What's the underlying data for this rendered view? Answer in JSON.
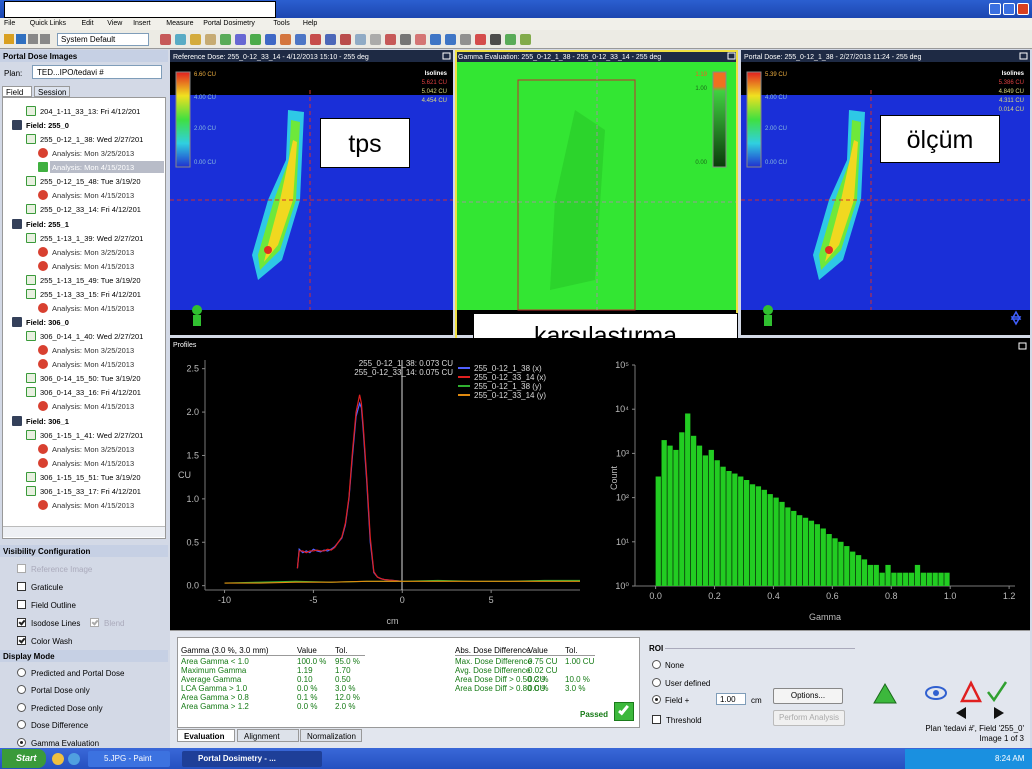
{
  "menu": [
    "File",
    "Quick Links",
    "Edit",
    "View",
    "Insert",
    "Measure",
    "Portal Dosimetry",
    "Tools",
    "Help"
  ],
  "toolbar": {
    "scheme": "System Default"
  },
  "left_panel": {
    "title": "Portal Dose Images",
    "plan_label": "Plan:",
    "plan": "TED...IPO/tedavi #",
    "tabs": [
      "Field",
      "Session"
    ],
    "selected": 4,
    "tree": [
      "204_1-11_33_13: Fri 4/12/201",
      "Field: 255_0",
      "255_0-12_1_38: Wed 2/27/201",
      "Analysis: Mon 3/25/2013",
      "Analysis: Mon 4/15/2013",
      "255_0-12_15_48: Tue 3/19/20",
      "Analysis: Mon 4/15/2013",
      "255_0-12_33_14: Fri 4/12/201",
      "Field: 255_1",
      "255_1-13_1_39: Wed 2/27/201",
      "Analysis: Mon 3/25/2013",
      "Analysis: Mon 4/15/2013",
      "255_1-13_15_49: Tue 3/19/20",
      "255_1-13_33_15: Fri 4/12/201",
      "Analysis: Mon 4/15/2013",
      "Field: 306_0",
      "306_0-14_1_40: Wed 2/27/201",
      "Analysis: Mon 3/25/2013",
      "Analysis: Mon 4/15/2013",
      "306_0-14_15_50: Tue 3/19/20",
      "306_0-14_33_16: Fri 4/12/201",
      "Analysis: Mon 4/15/2013",
      "Field: 306_1",
      "306_1-15_1_41: Wed 2/27/201",
      "Analysis: Mon 3/25/2013",
      "Analysis: Mon 4/15/2013",
      "306_1-15_15_51: Tue 3/19/20",
      "306_1-15_33_17: Fri 4/12/201",
      "Analysis: Mon 4/15/2013"
    ]
  },
  "visibility": {
    "title": "Visibility Configuration",
    "items": [
      {
        "label": "Reference Image",
        "checked": false,
        "enabled": false
      },
      {
        "label": "Graticule",
        "checked": false,
        "enabled": true
      },
      {
        "label": "Field Outline",
        "checked": false,
        "enabled": true
      },
      {
        "label": "Isodose Lines",
        "checked": true,
        "enabled": true
      },
      {
        "label": "Blend",
        "checked": true,
        "enabled": false
      },
      {
        "label": "Color Wash",
        "checked": true,
        "enabled": true
      }
    ]
  },
  "display_mode": {
    "title": "Display Mode",
    "options": [
      "Predicted and Portal Dose",
      "Portal Dose only",
      "Predicted Dose only",
      "Dose Difference",
      "Gamma Evaluation"
    ],
    "selected": 4
  },
  "panels": [
    {
      "title": "Reference Dose: 255_0-12_33_14 - 4/12/2013 15:10 - 255 deg",
      "colorbar": [
        "6.60 CU",
        "4.00 CU",
        "2.00 CU",
        "0.00 CU"
      ],
      "isolines": [
        "Isolines",
        "5.621 CU",
        "5.042 CU",
        "4.454 CU"
      ]
    },
    {
      "title": "Gamma Evaluation: 255_0-12_1_38 - 255_0-12_33_14 - 255 deg",
      "colorbar": [
        "1.19",
        "1.00",
        "0.00"
      ]
    },
    {
      "title": "Portal Dose: 255_0-12_1_38 - 2/27/2013 11:24 - 255 deg",
      "colorbar": [
        "5.39 CU",
        "4.00 CU",
        "2.00 CU",
        "0.00 CU"
      ],
      "isolines": [
        "Isolines",
        "5.386 CU",
        "4.849 CU",
        "4.311 CU",
        "0.014 CU"
      ]
    }
  ],
  "annotations": [
    "tps",
    "karşılaştırma",
    "ölçüm"
  ],
  "chart_data": [
    {
      "type": "line",
      "title": "Profiles",
      "x_label": "cm",
      "y_label": "CU",
      "xlim": [
        -11.1,
        10
      ],
      "ylim": [
        -0.05,
        2.6
      ],
      "xticks": [
        -10,
        -5,
        0,
        5
      ],
      "yticks": [
        {
          "value": 0,
          "label": "0.0"
        },
        0.5,
        {
          "value": 1,
          "label": "1.0"
        },
        1.5,
        {
          "value": 2,
          "label": "2.0"
        },
        2.5
      ],
      "annotations": [
        "255_0-12_1_38: 0.073 CU",
        "255_0-12_33_14: 0.075 CU"
      ],
      "series": [
        {
          "name": "255_0-12_1_38 (x)",
          "color": "#5060ff",
          "x": [
            -5.9,
            -5.8,
            -5.6,
            -5.4,
            -5.2,
            -5.0,
            -4.8,
            -4.6,
            -4.4,
            -4.2,
            -4.0,
            -3.8,
            -3.6,
            -3.4,
            -3.2,
            -3.0,
            -2.8,
            -2.6,
            -2.4,
            -2.3,
            -2.2,
            -2.0,
            -1.8,
            -1.6,
            -1.4,
            -1.2,
            -1.0,
            -0.5,
            0.0
          ],
          "values": [
            0.2,
            0.42,
            0.38,
            0.4,
            0.38,
            0.42,
            0.4,
            0.39,
            0.41,
            0.4,
            0.42,
            0.45,
            0.5,
            0.55,
            0.7,
            1.0,
            1.5,
            1.95,
            2.1,
            2.05,
            1.8,
            1.2,
            0.5,
            0.15,
            0.1,
            0.08,
            0.07,
            0.06,
            0.05
          ]
        },
        {
          "name": "255_0-12_33_14 (x)",
          "color": "#e02020",
          "x": [
            -5.9,
            -5.8,
            -5.6,
            -5.4,
            -5.2,
            -5.0,
            -4.8,
            -4.6,
            -4.4,
            -4.2,
            -4.0,
            -3.8,
            -3.6,
            -3.4,
            -3.2,
            -3.0,
            -2.8,
            -2.6,
            -2.4,
            -2.3,
            -2.2,
            -2.0,
            -1.8,
            -1.6,
            -1.4,
            -1.2,
            -1.0,
            -0.5,
            0.0
          ],
          "values": [
            0.2,
            0.4,
            0.4,
            0.38,
            0.4,
            0.4,
            0.41,
            0.4,
            0.4,
            0.42,
            0.41,
            0.44,
            0.5,
            0.56,
            0.72,
            1.02,
            1.55,
            2.0,
            2.2,
            2.1,
            1.85,
            1.25,
            0.55,
            0.16,
            0.1,
            0.08,
            0.07,
            0.06,
            0.05
          ]
        },
        {
          "name": "255_0-12_1_38 (y)",
          "color": "#30b030",
          "x": [
            -10,
            -8,
            -6,
            -4,
            -2,
            0,
            2,
            4,
            6,
            8,
            10
          ],
          "values": [
            0.03,
            0.04,
            0.05,
            0.04,
            0.05,
            0.05,
            0.06,
            0.05,
            0.05,
            0.06,
            0.06
          ]
        },
        {
          "name": "255_0-12_33_14 (y)",
          "color": "#e08a10",
          "x": [
            -10,
            -8,
            -6,
            -4,
            -2,
            0,
            2,
            4,
            6,
            8,
            10
          ],
          "values": [
            0.03,
            0.03,
            0.04,
            0.04,
            0.05,
            0.05,
            0.05,
            0.05,
            0.05,
            0.05,
            0.05
          ]
        }
      ]
    },
    {
      "type": "histogram",
      "x_label": "Gamma",
      "y_label": "Count",
      "log_y": true,
      "color": "#22cc22",
      "xlim": [
        -0.07,
        1.22
      ],
      "ylim": [
        1,
        100000
      ],
      "xticks": [
        {
          "value": 0,
          "label": "0.0"
        },
        0.2,
        0.4,
        0.6,
        0.8,
        {
          "value": 1,
          "label": "1.0"
        },
        1.2
      ],
      "yticks": [
        {
          "value": 1,
          "label": "10⁰"
        },
        {
          "value": 10,
          "label": "10¹"
        },
        {
          "value": 100,
          "label": "10²"
        },
        {
          "value": 1000,
          "label": "10³"
        },
        {
          "value": 10000,
          "label": "10⁴"
        },
        {
          "value": 100000,
          "label": "10⁵"
        }
      ],
      "bins": [
        0,
        0.02,
        0.04,
        0.06,
        0.08,
        0.1,
        0.12,
        0.14,
        0.16,
        0.18,
        0.2,
        0.22,
        0.24,
        0.26,
        0.28,
        0.3,
        0.32,
        0.34,
        0.36,
        0.38,
        0.4,
        0.42,
        0.44,
        0.46,
        0.48,
        0.5,
        0.52,
        0.54,
        0.56,
        0.58,
        0.6,
        0.62,
        0.64,
        0.66,
        0.68,
        0.7,
        0.72,
        0.74,
        0.76,
        0.78,
        0.8,
        0.82,
        0.84,
        0.86,
        0.88,
        0.9,
        0.92,
        0.94,
        0.96,
        0.98,
        1.0
      ],
      "values": [
        300,
        2000,
        1500,
        1200,
        3000,
        8000,
        2500,
        1500,
        900,
        1200,
        700,
        500,
        400,
        350,
        300,
        250,
        200,
        180,
        150,
        120,
        100,
        80,
        60,
        50,
        40,
        35,
        30,
        25,
        20,
        15,
        12,
        10,
        8,
        6,
        5,
        4,
        3,
        3,
        2,
        3,
        2,
        2,
        2,
        2,
        3,
        2,
        2,
        2,
        2,
        2
      ]
    }
  ],
  "results": {
    "gamma_header": [
      "Gamma (3.0 %, 3.0 mm)",
      "Value",
      "Tol."
    ],
    "gamma_rows": [
      [
        "Area Gamma < 1.0",
        "100.0 %",
        "95.0 %"
      ],
      [
        "Maximum Gamma",
        "1.19",
        "1.70"
      ],
      [
        "Average Gamma",
        "0.10",
        "0.50"
      ],
      [
        "LCA Gamma > 1.0",
        "0.0 %",
        "3.0 %"
      ],
      [
        "Area Gamma > 0.8",
        "0.1 %",
        "12.0 %"
      ],
      [
        "Area Gamma > 1.2",
        "0.0 %",
        "2.0 %"
      ]
    ],
    "dose_header": [
      "Abs. Dose Difference",
      "Value",
      "Tol."
    ],
    "dose_rows": [
      [
        "Max. Dose Difference",
        "0.75 CU",
        "1.00 CU"
      ],
      [
        "Avg. Dose Difference",
        "0.02 CU"
      ],
      [
        "Area Dose Diff > 0.50 CU",
        "0.2 %",
        "10.0 %"
      ],
      [
        "Area Dose Diff > 0.80 CU",
        "0.0 %",
        "3.0 %"
      ]
    ],
    "status": "Passed",
    "tabs": [
      "Evaluation",
      "Alignment",
      "Normalization"
    ]
  },
  "roi": {
    "title": "ROI",
    "options": [
      "None",
      "User defined",
      "Field +"
    ],
    "selected": 2,
    "margin": "1.00",
    "unit": "cm",
    "options_button": "Options...",
    "threshold": "Threshold",
    "analyze_button": "Perform Analysis"
  },
  "status": [
    "Plan 'tedavi #', Field '255_0'",
    "Image 1 of 3"
  ],
  "taskbar": {
    "start": "Start",
    "items": [
      "5.JPG - Paint",
      "Portal Dosimetry - ..."
    ],
    "clock": "8:24 AM"
  }
}
